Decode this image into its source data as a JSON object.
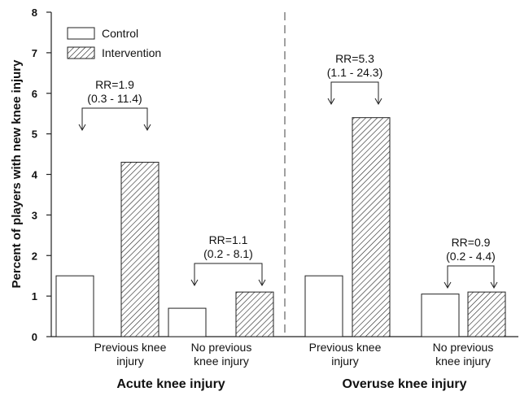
{
  "chart_data": {
    "type": "bar",
    "title": "",
    "ylabel": "Percent of players with new knee injury",
    "ylim": [
      0,
      8
    ],
    "yticks": [
      0,
      1,
      2,
      3,
      4,
      5,
      6,
      7,
      8
    ],
    "grid": false,
    "legend_position": "top-left",
    "series": [
      {
        "name": "Control",
        "fill": "white"
      },
      {
        "name": "Intervention",
        "fill": "hatched"
      }
    ],
    "groups": [
      {
        "label": "Acute knee injury",
        "categories": [
          {
            "label_line1": "Previous knee",
            "label_line2": "injury",
            "values": [
              1.5,
              4.3
            ],
            "rr": "RR=1.9",
            "ci": "(0.3 - 11.4)"
          },
          {
            "label_line1": "No previous",
            "label_line2": "knee injury",
            "values": [
              0.7,
              1.1
            ],
            "rr": "RR=1.1",
            "ci": "(0.2 - 8.1)"
          }
        ]
      },
      {
        "label": "Overuse knee injury",
        "categories": [
          {
            "label_line1": "Previous knee",
            "label_line2": "injury",
            "values": [
              1.5,
              5.4
            ],
            "rr": "RR=5.3",
            "ci": "(1.1 - 24.3)"
          },
          {
            "label_line1": "No previous",
            "label_line2": "knee injury",
            "values": [
              1.05,
              1.1
            ],
            "rr": "RR=0.9",
            "ci": "(0.2 - 4.4)"
          }
        ]
      }
    ]
  }
}
